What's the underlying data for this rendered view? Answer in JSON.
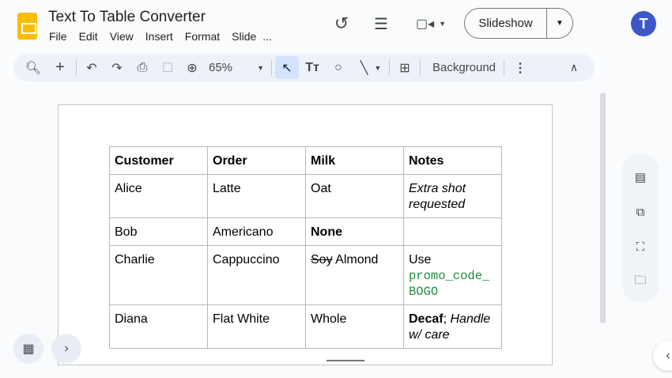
{
  "app": {
    "title": "Text To Table Converter",
    "menu": [
      "File",
      "Edit",
      "View",
      "Insert",
      "Format",
      "Slide",
      "..."
    ],
    "avatar_letter": "T",
    "slideshow_label": "Slideshow"
  },
  "toolbar": {
    "zoom": "65%",
    "background_label": "Background",
    "icons": [
      "search-icon",
      "plus-icon",
      "undo-icon",
      "redo-icon",
      "print-icon",
      "paint-format-icon",
      "zoom-icon",
      "select-cursor-icon",
      "text-box-icon",
      "shape-icon",
      "line-icon",
      "comment-add-icon",
      "more-vert-icon",
      "collapse-icon"
    ]
  },
  "table": {
    "headers": [
      "Customer",
      "Order",
      "Milk",
      "Notes"
    ],
    "rows": [
      {
        "customer": "Alice",
        "order": "Latte",
        "milk": "Oat",
        "notes": "Extra shot requested"
      },
      {
        "customer": "Bob",
        "order": "Americano",
        "milk": "None",
        "notes": ""
      },
      {
        "customer": "Charlie",
        "order": "Cappuccino",
        "milk_struck": "Soy",
        "milk": "Almond",
        "notes_prefix": "Use",
        "notes_code": "promo_code_\nBOGO"
      },
      {
        "customer": "Diana",
        "order": "Flat White",
        "milk": "Whole",
        "notes_bold": "Decaf",
        "notes_sep": ";",
        "notes_italic": "Handle w/ care"
      }
    ]
  },
  "colors": {
    "accent": "#0b57d0",
    "code": "#1e8e3e",
    "toolbar_bg": "#edf2fa"
  }
}
